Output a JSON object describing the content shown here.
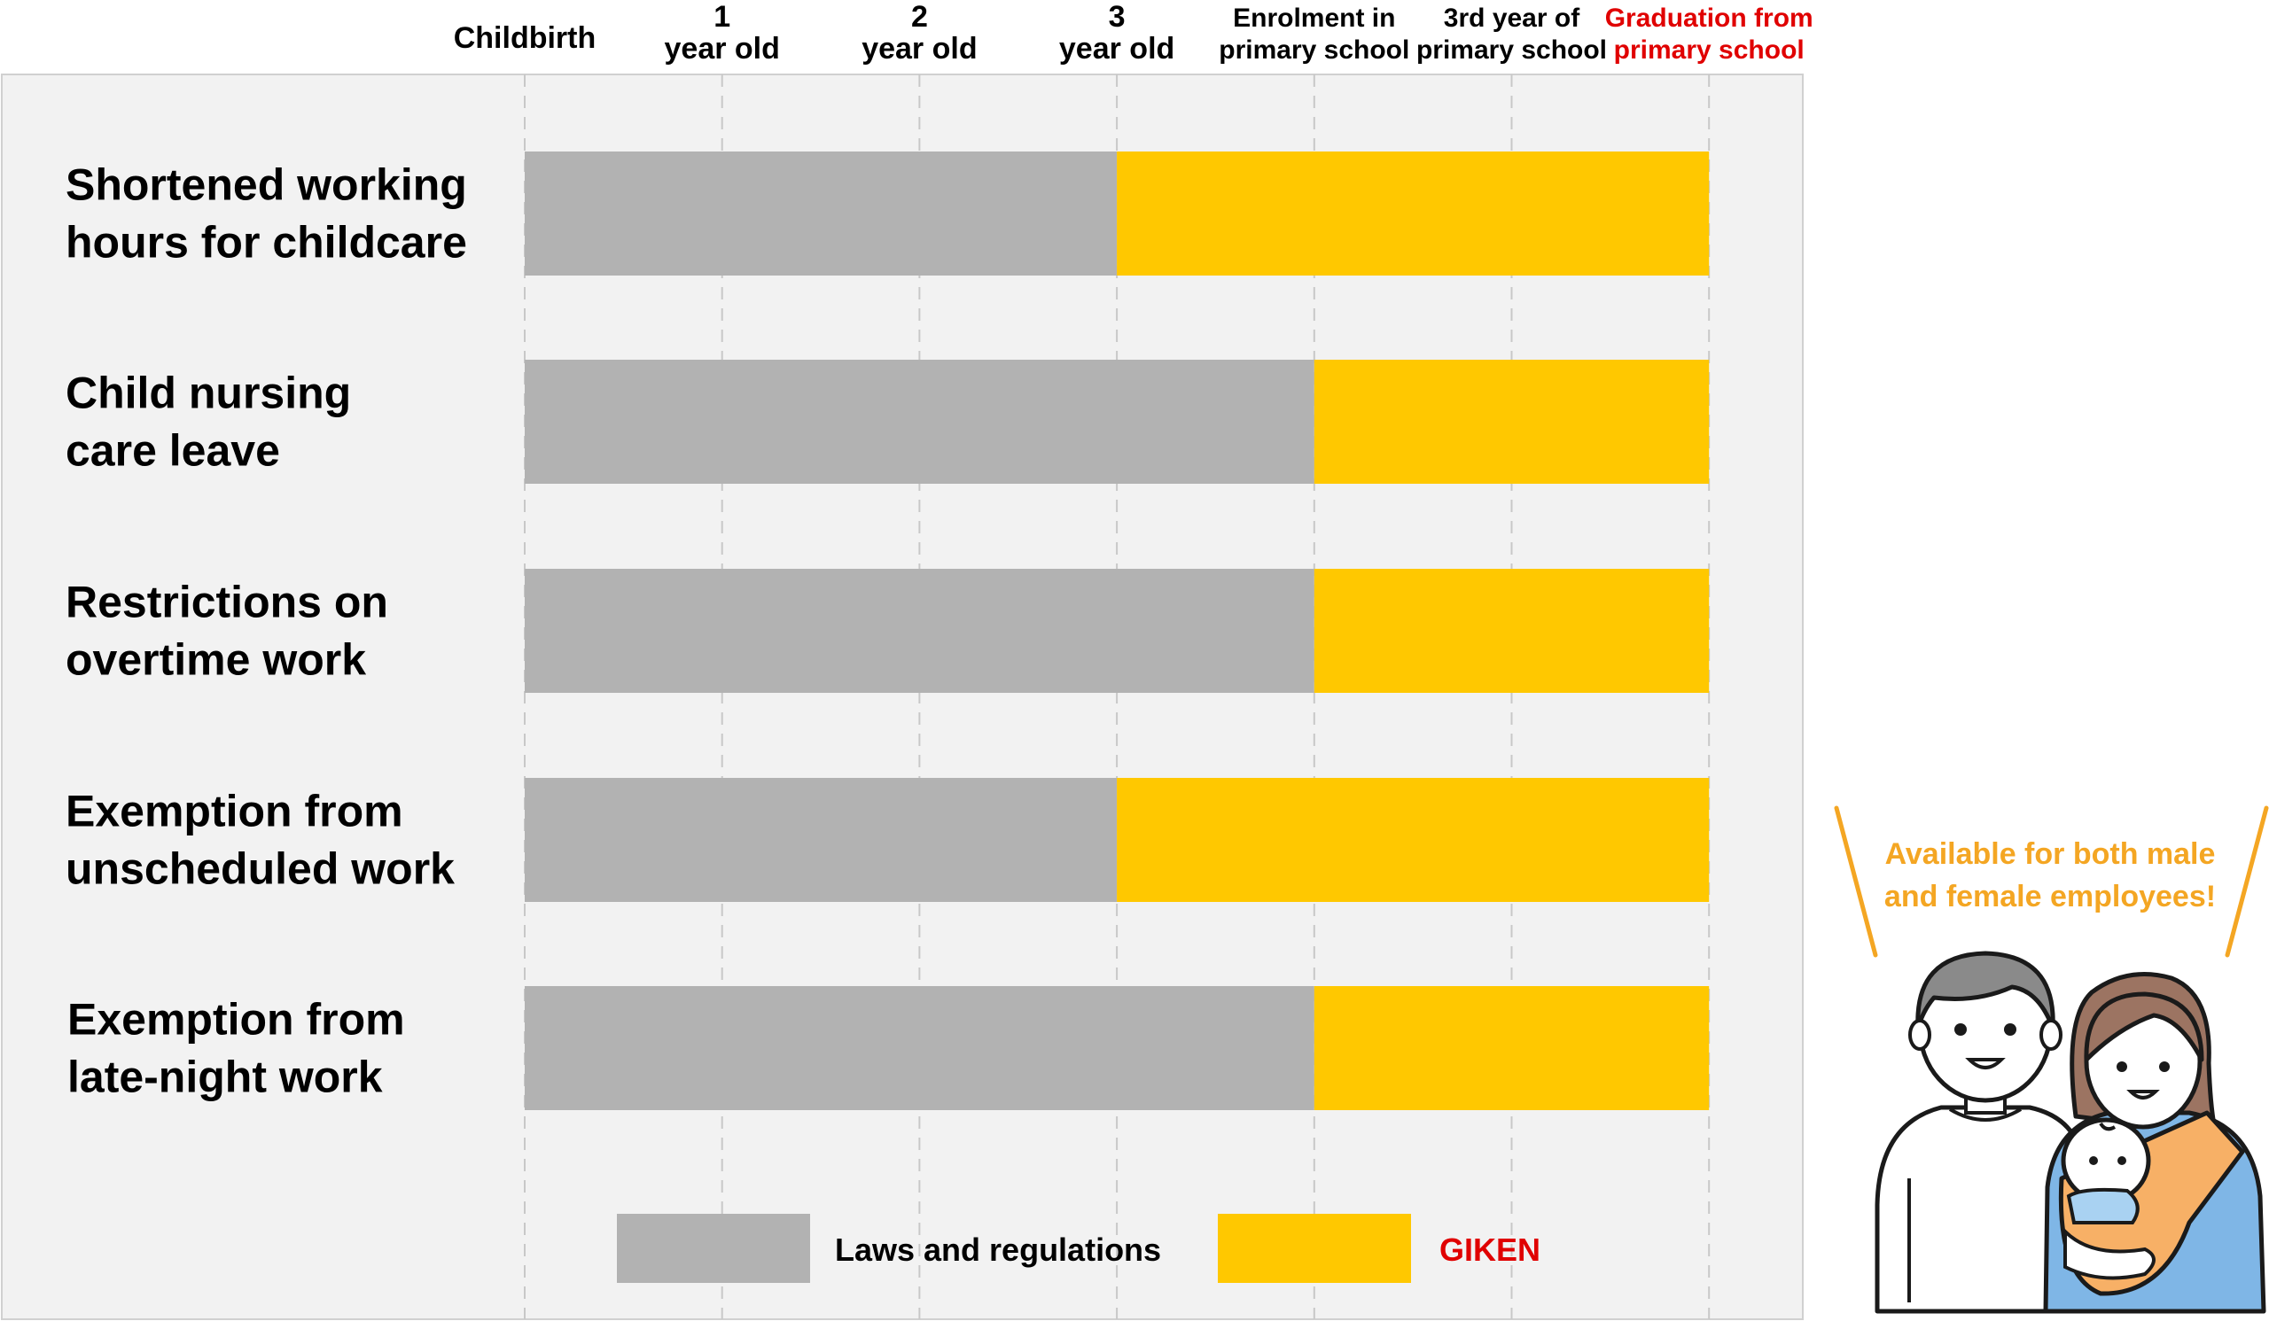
{
  "chart_data": {
    "type": "bar",
    "orientation": "horizontal-stacked",
    "milestones": [
      {
        "line1": "Childbirth",
        "line2": "",
        "highlight": false
      },
      {
        "line1": "1",
        "line2": "year old",
        "highlight": false
      },
      {
        "line1": "2",
        "line2": "year old",
        "highlight": false
      },
      {
        "line1": "3",
        "line2": "year old",
        "highlight": false
      },
      {
        "line1": "Enrolment in",
        "line2": "primary school",
        "highlight": false
      },
      {
        "line1": "3rd year of",
        "line2": "primary school",
        "highlight": false
      },
      {
        "line1": "Graduation from",
        "line2": "primary school",
        "highlight": true
      }
    ],
    "rows": [
      {
        "label_lines": [
          "Shortened working",
          "hours for childcare"
        ],
        "laws_end": "3 year old",
        "giken_end": "Graduation from primary school"
      },
      {
        "label_lines": [
          "Child nursing",
          "care leave"
        ],
        "laws_end": "Enrolment in primary school",
        "giken_end": "Graduation from primary school"
      },
      {
        "label_lines": [
          "Restrictions on",
          "overtime work"
        ],
        "laws_end": "Enrolment in primary school",
        "giken_end": "Graduation from primary school"
      },
      {
        "label_lines": [
          "Exemption from",
          "unscheduled work"
        ],
        "laws_end": "3 year old",
        "giken_end": "Graduation from primary school"
      },
      {
        "label_lines": [
          "Exemption from",
          "late-night work"
        ],
        "laws_end": "Enrolment in primary school",
        "giken_end": "Graduation from primary school"
      }
    ],
    "row_data_index": {
      "start": 0,
      "laws_end_index": [
        3,
        4,
        4,
        3,
        4
      ],
      "giken_end_index": [
        6,
        6,
        6,
        6,
        6
      ]
    },
    "legend": {
      "laws": {
        "label": "Laws and regulations",
        "color": "#b2b2b2"
      },
      "giken": {
        "label": "GIKEN",
        "color": "#ffc800",
        "label_color": "#e00000"
      },
      "placement": "bottom"
    },
    "grid": true
  },
  "callout": {
    "line1": "Available for both male",
    "line2": "and female employees!",
    "color": "#f4a623"
  },
  "colors": {
    "panel_bg": "#f2f2f2",
    "highlight_text": "#e00000",
    "grid": "#c8c8c8"
  }
}
